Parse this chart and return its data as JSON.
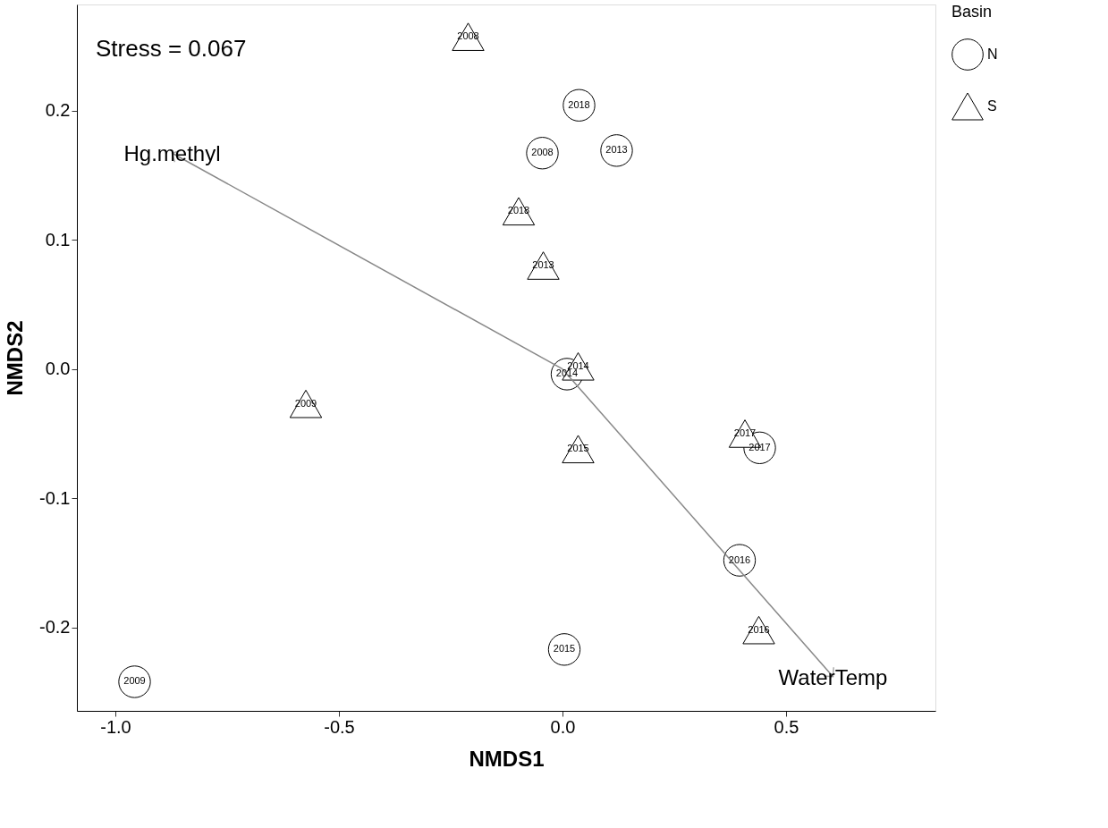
{
  "chart_data": {
    "type": "scatter",
    "xlabel": "NMDS1",
    "ylabel": "NMDS2",
    "legend_title": "Basin",
    "legend": "right",
    "grid": false,
    "annotations": [
      "Stress = 0.067",
      {
        "text": "2018",
        "x": 0.037,
        "y": 0.204
      },
      {
        "text": "2008",
        "x": -0.045,
        "y": 0.167
      },
      {
        "text": "2013",
        "x": 0.121,
        "y": 0.169
      },
      {
        "text": "2014",
        "x": 0.01,
        "y": -0.004
      },
      {
        "text": "2017",
        "x": 0.441,
        "y": -0.061
      },
      {
        "text": "2016",
        "x": 0.396,
        "y": -0.148
      },
      {
        "text": "2015",
        "x": 0.004,
        "y": -0.217
      },
      {
        "text": "2009",
        "x": -0.957,
        "y": -0.242
      },
      {
        "text": "2008",
        "x": -0.211,
        "y": 0.257
      },
      {
        "text": "2018",
        "x": -0.098,
        "y": 0.122
      },
      {
        "text": "2013",
        "x": -0.043,
        "y": 0.08
      },
      {
        "text": "2014",
        "x": 0.035,
        "y": 0.002
      },
      {
        "text": "2015",
        "x": 0.035,
        "y": -0.062
      },
      {
        "text": "2017",
        "x": 0.408,
        "y": -0.05
      },
      {
        "text": "2016",
        "x": 0.439,
        "y": -0.202
      },
      {
        "text": "2009",
        "x": -0.574,
        "y": -0.027
      }
    ],
    "xlim": [
      -1.086,
      0.834
    ],
    "ylim": [
      -0.2645,
      0.282
    ],
    "xticks": [
      {
        "value": -1,
        "label": "-1.0"
      },
      {
        "value": -0.5,
        "label": "-0.5"
      },
      {
        "value": 0,
        "label": "0.0"
      },
      {
        "value": 0.5,
        "label": "0.5"
      }
    ],
    "yticks": [
      {
        "value": -0.2,
        "label": "-0.2"
      },
      {
        "value": -0.1,
        "label": "-0.1"
      },
      {
        "value": 0,
        "label": "0.0"
      },
      {
        "value": 0.1,
        "label": "0.1"
      },
      {
        "value": 0.2,
        "label": "0.2"
      }
    ],
    "series": [
      {
        "name": "N",
        "marker": "circle",
        "color": "#000000",
        "x": [
          0.037,
          -0.045,
          0.121,
          0.01,
          0.441,
          0.396,
          0.004,
          -0.957
        ],
        "values": [
          0.204,
          0.167,
          0.169,
          -0.004,
          -0.061,
          -0.148,
          -0.217,
          -0.242
        ]
      },
      {
        "name": "S",
        "marker": "triangle",
        "color": "#000000",
        "x": [
          -0.211,
          -0.098,
          -0.043,
          0.035,
          0.035,
          0.408,
          0.439,
          -0.574
        ],
        "values": [
          0.257,
          0.122,
          0.08,
          0.002,
          -0.062,
          -0.05,
          -0.202,
          -0.027
        ]
      },
      {
        "name": "Hg.methyl",
        "type": "line",
        "color": "#888888",
        "x": [
          0,
          -0.873
        ],
        "values": [
          0,
          0.167
        ]
      },
      {
        "name": "WaterTemp",
        "type": "line",
        "color": "#888888",
        "x": [
          0,
          0.605
        ],
        "values": [
          0,
          -0.238
        ]
      }
    ]
  }
}
